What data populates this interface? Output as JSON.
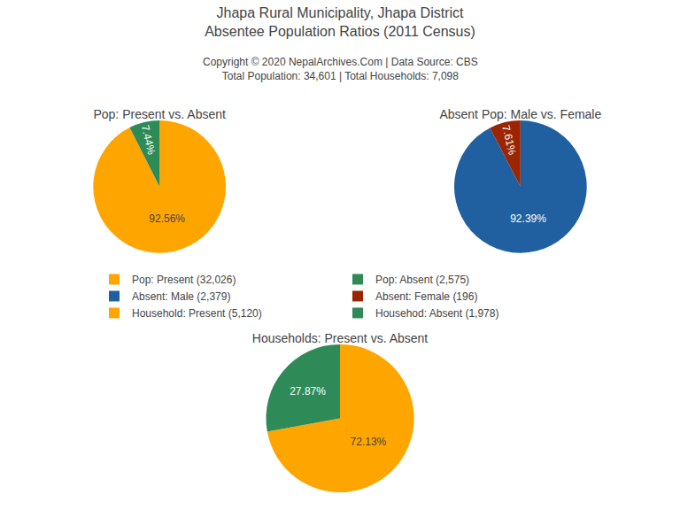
{
  "title": "Jhapa Rural Municipality, Jhapa District\nAbsentee Population Ratios (2011 Census)",
  "subtitle": "Copyright © 2020 NepalArchives.Com | Data Source: CBS\nTotal Population: 34,601 | Total Households: 7,098",
  "chart_data": [
    {
      "type": "pie",
      "title": "Pop: Present vs. Absent",
      "categories": [
        "Pop: Present (32,026)",
        "Pop: Absent (2,575)"
      ],
      "values": [
        92.56,
        7.44
      ],
      "value_labels": [
        "92.56%",
        "7.44%"
      ],
      "colors": [
        "#FFA500",
        "#2E8B57"
      ],
      "data_labels": true
    },
    {
      "type": "pie",
      "title": "Absent Pop: Male vs. Female",
      "categories": [
        "Absent: Male (2,379)",
        "Absent: Female (196)"
      ],
      "values": [
        92.39,
        7.61
      ],
      "value_labels": [
        "92.39%",
        "7.61%"
      ],
      "colors": [
        "#2060A0",
        "#9B2500"
      ],
      "data_labels": true
    },
    {
      "type": "pie",
      "title": "Households: Present vs. Absent",
      "categories": [
        "Household: Present (5,120)",
        "Househod: Absent (1,978)"
      ],
      "values": [
        72.13,
        27.87
      ],
      "value_labels": [
        "72.13%",
        "27.87%"
      ],
      "colors": [
        "#FFA500",
        "#2E8B57"
      ],
      "data_labels": true
    }
  ]
}
